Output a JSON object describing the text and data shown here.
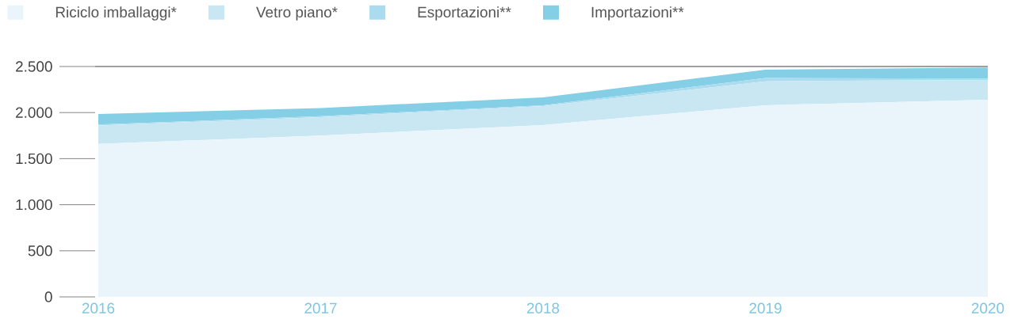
{
  "chart_data": {
    "type": "area",
    "stacked": true,
    "categories": [
      "2016",
      "2017",
      "2018",
      "2019",
      "2020"
    ],
    "series": [
      {
        "name": "Riciclo imballaggi*",
        "color": "#eaf5fb",
        "values": [
          1660,
          1750,
          1865,
          2080,
          2140
        ]
      },
      {
        "name": "Vetro piano*",
        "color": "#c9e7f3",
        "values": [
          200,
          200,
          205,
          260,
          215
        ]
      },
      {
        "name": "Esportazioni**",
        "color": "#aadbee",
        "values": [
          10,
          10,
          10,
          35,
          15
        ]
      },
      {
        "name": "Importazioni**",
        "color": "#85cfe6",
        "values": [
          115,
          90,
          85,
          90,
          120
        ]
      }
    ],
    "ylim": [
      0,
      2500
    ],
    "yticks": [
      0,
      500,
      {
        "value": 1000,
        "label": "1.000"
      },
      {
        "value": 1500,
        "label": "1.500"
      },
      {
        "value": 2000,
        "label": "2.000"
      },
      {
        "value": 2500,
        "label": "2.500"
      }
    ],
    "legend": "top"
  }
}
